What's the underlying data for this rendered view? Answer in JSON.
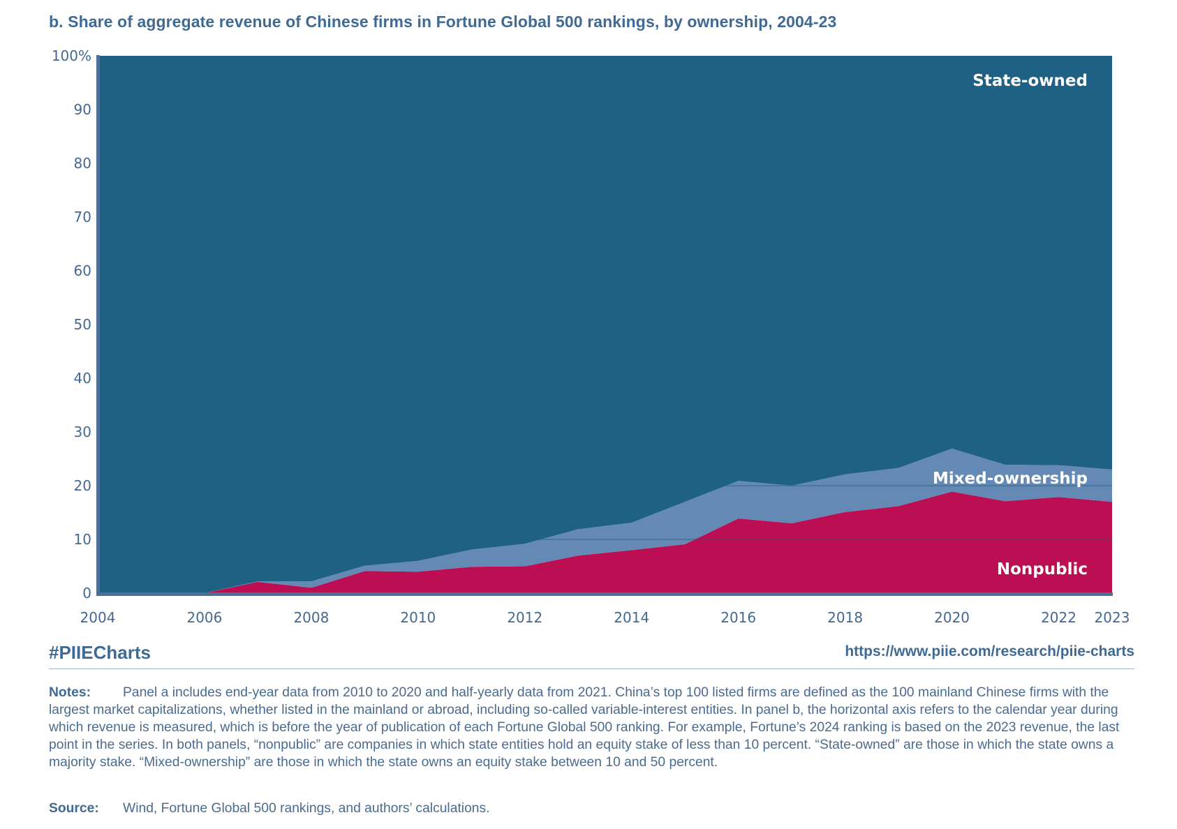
{
  "header": {
    "title": "b. Share of aggregate revenue of Chinese firms in Fortune Global 500 rankings, by ownership, 2004-23"
  },
  "chart_data": {
    "type": "area",
    "stacked": true,
    "title": "b. Share of aggregate revenue of Chinese firms in Fortune Global 500 rankings, by ownership, 2004-23",
    "xlabel": "",
    "ylabel": "",
    "x": [
      2004,
      2005,
      2006,
      2007,
      2008,
      2009,
      2010,
      2011,
      2012,
      2013,
      2014,
      2015,
      2016,
      2017,
      2018,
      2019,
      2020,
      2021,
      2022,
      2023
    ],
    "xlim": [
      2004,
      2023
    ],
    "ylim": [
      0,
      100
    ],
    "x_ticks": [
      "2004",
      "2006",
      "2008",
      "2010",
      "2012",
      "2014",
      "2016",
      "2018",
      "2020",
      "2022",
      "2023"
    ],
    "y_ticks": [
      "0",
      "10",
      "20",
      "30",
      "40",
      "50",
      "60",
      "70",
      "80",
      "90",
      "100%"
    ],
    "grid": true,
    "series": [
      {
        "name": "Nonpublic",
        "color": "#bc0e52",
        "values": [
          0,
          0,
          0,
          2.1,
          1.0,
          4.1,
          4.0,
          4.9,
          5.0,
          7.0,
          8.0,
          9.1,
          13.9,
          13.0,
          15.1,
          16.2,
          18.9,
          17.1,
          17.9,
          17.0
        ]
      },
      {
        "name": "Mixed-ownership",
        "color": "#6589b5",
        "values": [
          0,
          0,
          0,
          0.1,
          1.2,
          1.0,
          2.0,
          3.2,
          4.2,
          4.9,
          5.1,
          7.9,
          7.0,
          7.0,
          7.0,
          7.1,
          8.0,
          6.8,
          5.9,
          6.0
        ]
      },
      {
        "name": "State-owned",
        "color": "#1f6185",
        "values": [
          100,
          100,
          100,
          97.8,
          97.8,
          94.9,
          94.0,
          91.9,
          90.8,
          88.1,
          86.9,
          83.0,
          79.1,
          80.0,
          77.9,
          76.7,
          73.1,
          76.1,
          76.2,
          77.0
        ]
      }
    ],
    "annotations": [
      "State-owned",
      "Mixed-ownership",
      "Nonpublic"
    ],
    "legend": "inline labels right side"
  },
  "footer": {
    "hashtag": "#PIIECharts",
    "url": "https://www.piie.com/research/piie-charts",
    "notes_label": "Notes:",
    "notes_text": "Panel a includes end-year data from 2010 to 2020 and half-yearly data from 2021. China’s top 100 listed firms are defined as the 100 mainland Chinese firms with the largest market capitalizations, whether listed in the mainland or abroad, including so-called variable-interest entities. In panel b, the horizontal axis refers to the calendar year during which revenue is measured, which is before the year of publication of each Fortune Global 500 ranking. For example, Fortune’s 2024 ranking is based on the 2023 revenue, the last point in the series. In both panels, “nonpublic” are companies in which state entities hold an equity stake of less than 10 percent. “State-owned” are those in which the state owns a majority stake. “Mixed-ownership” are those in which the state owns an equity stake between 10 and 50 percent.",
    "source_label": "Source:",
    "source_text": "Wind, Fortune Global 500 rankings, and authors’ calculations."
  }
}
